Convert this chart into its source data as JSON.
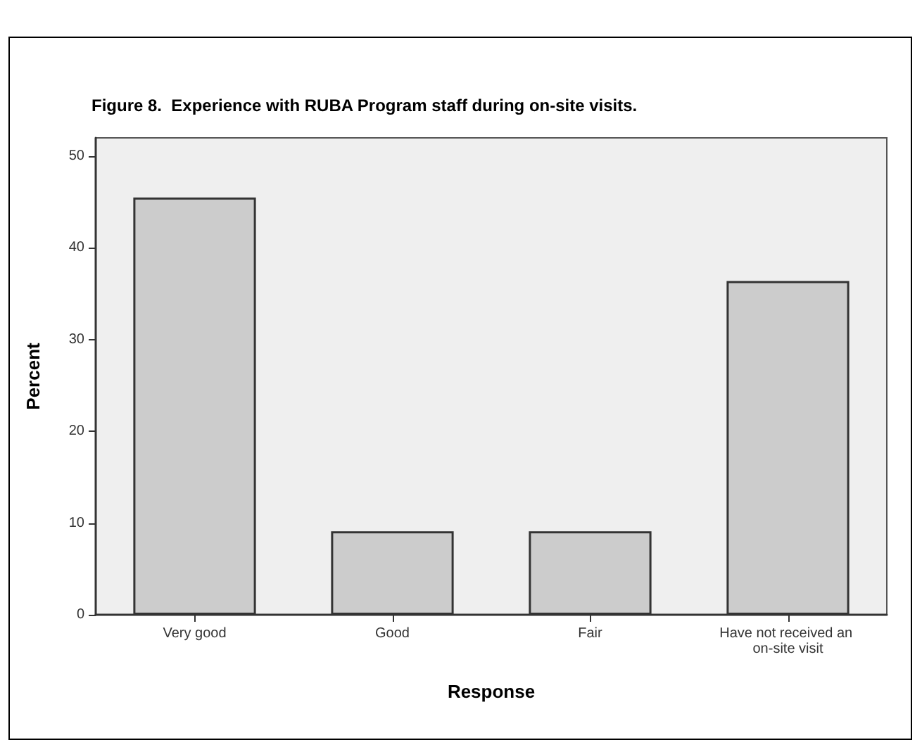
{
  "chart_data": {
    "type": "bar",
    "title": "Figure 8.  Experience with RUBA Program staff during on-site visits.",
    "xlabel": "Response",
    "ylabel": "Percent",
    "categories": [
      "Very good",
      "Good",
      "Fair",
      "Have not received an on-site visit"
    ],
    "values": [
      45.5,
      9.1,
      9.1,
      36.4
    ],
    "color": "#cccccc",
    "ylim": [
      0,
      52
    ],
    "yticks": [
      0,
      10,
      20,
      30,
      40,
      50
    ]
  }
}
